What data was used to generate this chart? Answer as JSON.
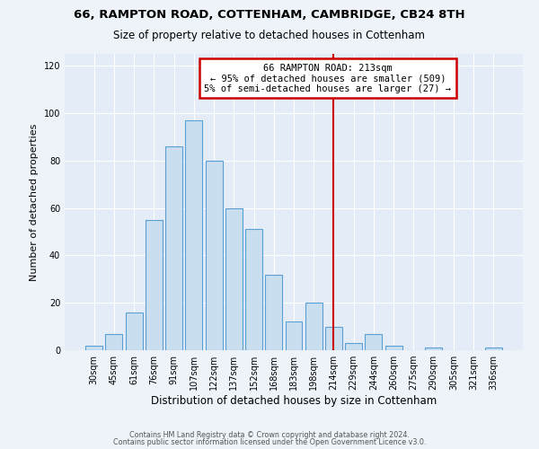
{
  "title1": "66, RAMPTON ROAD, COTTENHAM, CAMBRIDGE, CB24 8TH",
  "title2": "Size of property relative to detached houses in Cottenham",
  "xlabel": "Distribution of detached houses by size in Cottenham",
  "ylabel": "Number of detached properties",
  "bar_labels": [
    "30sqm",
    "45sqm",
    "61sqm",
    "76sqm",
    "91sqm",
    "107sqm",
    "122sqm",
    "137sqm",
    "152sqm",
    "168sqm",
    "183sqm",
    "198sqm",
    "214sqm",
    "229sqm",
    "244sqm",
    "260sqm",
    "275sqm",
    "290sqm",
    "305sqm",
    "321sqm",
    "336sqm"
  ],
  "bar_values": [
    2,
    7,
    16,
    55,
    86,
    97,
    80,
    60,
    51,
    32,
    12,
    20,
    10,
    3,
    7,
    2,
    0,
    1,
    0,
    0,
    1
  ],
  "bar_color": "#c9dff0",
  "bar_edge_color": "#5a9fd4",
  "vline_index": 12,
  "vline_color": "#cc0000",
  "annotation_title": "66 RAMPTON ROAD: 213sqm",
  "annotation_line1": "← 95% of detached houses are smaller (509)",
  "annotation_line2": "5% of semi-detached houses are larger (27) →",
  "annotation_box_color": "#cc0000",
  "ylim": [
    0,
    125
  ],
  "yticks": [
    0,
    20,
    40,
    60,
    80,
    100,
    120
  ],
  "footer1": "Contains HM Land Registry data © Crown copyright and database right 2024.",
  "footer2": "Contains public sector information licensed under the Open Government Licence v3.0.",
  "bg_color": "#eef3fa",
  "plot_bg_color": "#e4edf7"
}
